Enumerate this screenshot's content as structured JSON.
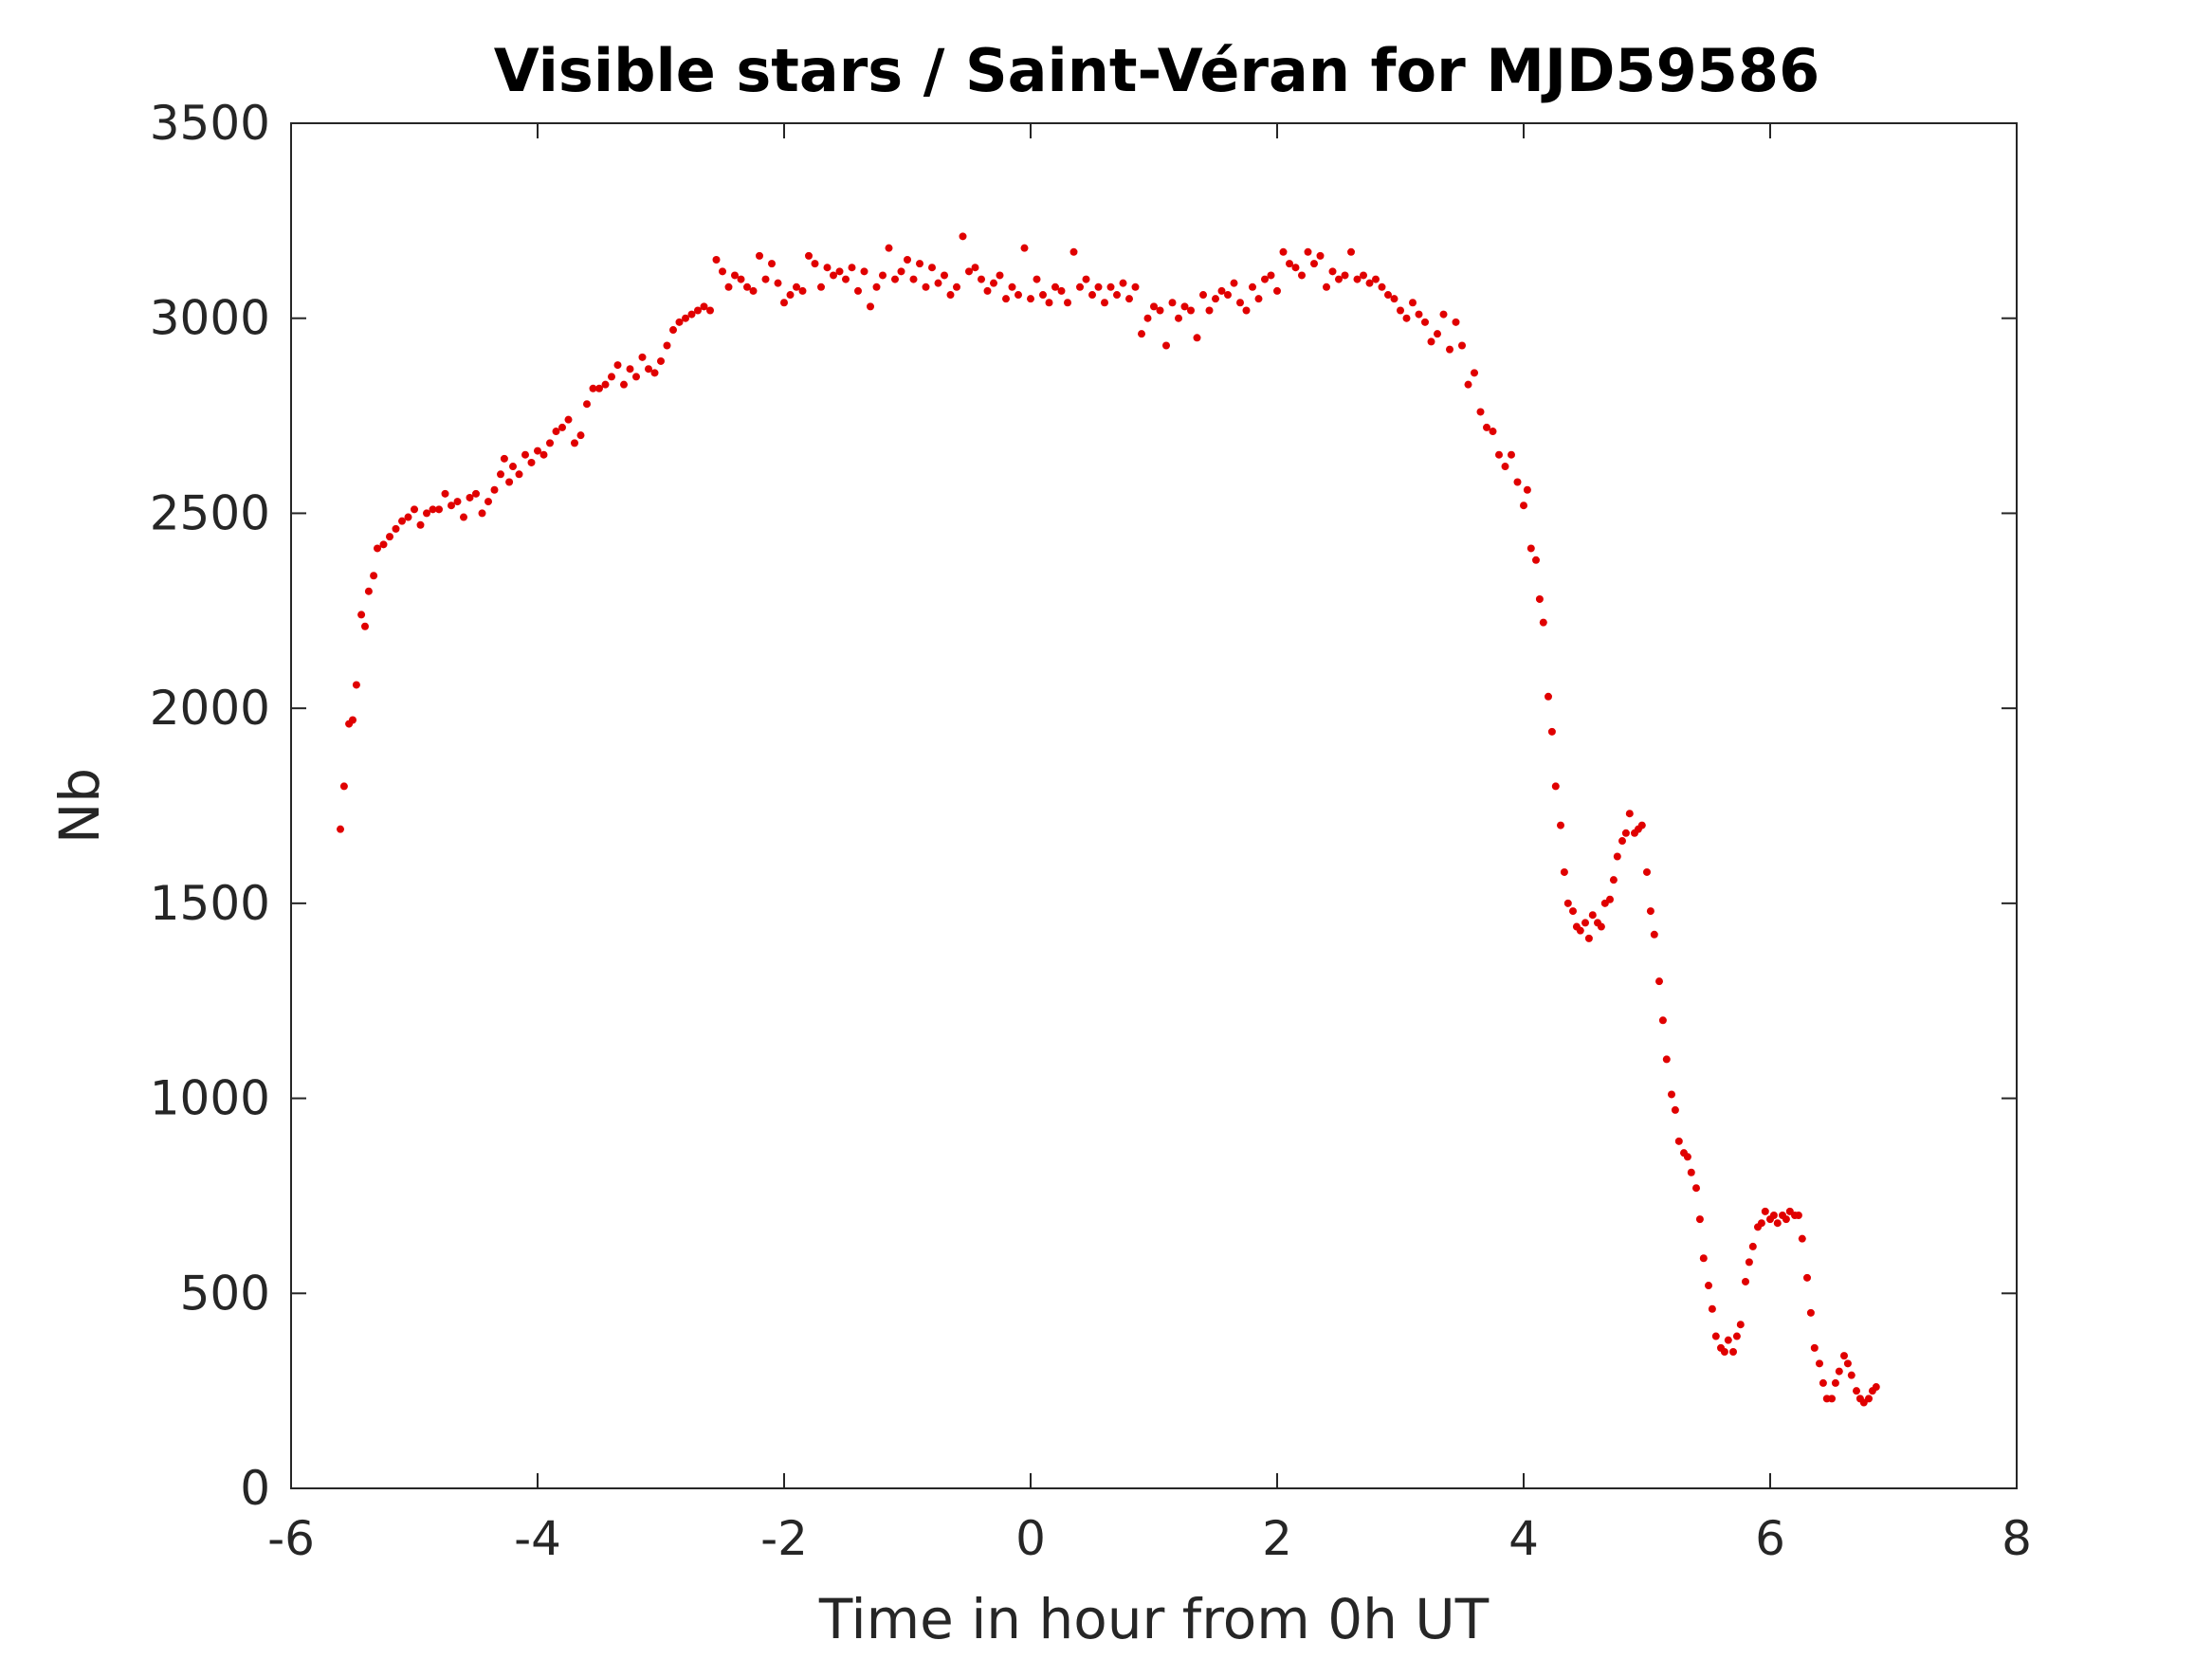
{
  "chart_data": {
    "type": "scatter",
    "title": "Visible stars / Saint-Véran for MJD59586",
    "xlabel": "Time in hour from 0h UT",
    "ylabel": "Nb",
    "xlim": [
      -6,
      8
    ],
    "ylim": [
      0,
      3500
    ],
    "xticks": [
      -6,
      -4,
      -2,
      0,
      2,
      4,
      6,
      8
    ],
    "yticks": [
      0,
      500,
      1000,
      1500,
      2000,
      2500,
      3000,
      3500
    ],
    "grid": false,
    "legend": "none",
    "marker_color": "#e00000",
    "series": [
      {
        "name": "",
        "points": [
          [
            -5.6,
            1690
          ],
          [
            -5.57,
            1800
          ],
          [
            -5.53,
            1960
          ],
          [
            -5.5,
            1970
          ],
          [
            -5.47,
            2060
          ],
          [
            -5.43,
            2240
          ],
          [
            -5.4,
            2210
          ],
          [
            -5.37,
            2300
          ],
          [
            -5.33,
            2340
          ],
          [
            -5.3,
            2410
          ],
          [
            -5.25,
            2420
          ],
          [
            -5.2,
            2440
          ],
          [
            -5.15,
            2460
          ],
          [
            -5.1,
            2480
          ],
          [
            -5.05,
            2490
          ],
          [
            -5.0,
            2510
          ],
          [
            -4.95,
            2470
          ],
          [
            -4.9,
            2500
          ],
          [
            -4.85,
            2510
          ],
          [
            -4.8,
            2510
          ],
          [
            -4.75,
            2550
          ],
          [
            -4.7,
            2520
          ],
          [
            -4.65,
            2530
          ],
          [
            -4.6,
            2490
          ],
          [
            -4.55,
            2540
          ],
          [
            -4.5,
            2550
          ],
          [
            -4.45,
            2500
          ],
          [
            -4.4,
            2530
          ],
          [
            -4.35,
            2560
          ],
          [
            -4.3,
            2600
          ],
          [
            -4.27,
            2640
          ],
          [
            -4.23,
            2580
          ],
          [
            -4.2,
            2620
          ],
          [
            -4.15,
            2600
          ],
          [
            -4.1,
            2650
          ],
          [
            -4.05,
            2630
          ],
          [
            -4.0,
            2660
          ],
          [
            -3.95,
            2650
          ],
          [
            -3.9,
            2680
          ],
          [
            -3.85,
            2710
          ],
          [
            -3.8,
            2720
          ],
          [
            -3.75,
            2740
          ],
          [
            -3.7,
            2680
          ],
          [
            -3.65,
            2700
          ],
          [
            -3.6,
            2780
          ],
          [
            -3.55,
            2820
          ],
          [
            -3.5,
            2820
          ],
          [
            -3.45,
            2830
          ],
          [
            -3.4,
            2850
          ],
          [
            -3.35,
            2880
          ],
          [
            -3.3,
            2830
          ],
          [
            -3.25,
            2870
          ],
          [
            -3.2,
            2850
          ],
          [
            -3.15,
            2900
          ],
          [
            -3.1,
            2870
          ],
          [
            -3.05,
            2860
          ],
          [
            -3.0,
            2890
          ],
          [
            -2.95,
            2930
          ],
          [
            -2.9,
            2970
          ],
          [
            -2.85,
            2990
          ],
          [
            -2.8,
            3000
          ],
          [
            -2.75,
            3010
          ],
          [
            -2.7,
            3020
          ],
          [
            -2.65,
            3030
          ],
          [
            -2.6,
            3020
          ],
          [
            -2.55,
            3150
          ],
          [
            -2.5,
            3120
          ],
          [
            -2.45,
            3080
          ],
          [
            -2.4,
            3110
          ],
          [
            -2.35,
            3100
          ],
          [
            -2.3,
            3080
          ],
          [
            -2.25,
            3070
          ],
          [
            -2.2,
            3160
          ],
          [
            -2.15,
            3100
          ],
          [
            -2.1,
            3140
          ],
          [
            -2.05,
            3090
          ],
          [
            -2.0,
            3040
          ],
          [
            -1.95,
            3060
          ],
          [
            -1.9,
            3080
          ],
          [
            -1.85,
            3070
          ],
          [
            -1.8,
            3160
          ],
          [
            -1.75,
            3140
          ],
          [
            -1.7,
            3080
          ],
          [
            -1.65,
            3130
          ],
          [
            -1.6,
            3110
          ],
          [
            -1.55,
            3120
          ],
          [
            -1.5,
            3100
          ],
          [
            -1.45,
            3130
          ],
          [
            -1.4,
            3070
          ],
          [
            -1.35,
            3120
          ],
          [
            -1.3,
            3030
          ],
          [
            -1.25,
            3080
          ],
          [
            -1.2,
            3110
          ],
          [
            -1.15,
            3180
          ],
          [
            -1.1,
            3100
          ],
          [
            -1.05,
            3120
          ],
          [
            -1.0,
            3150
          ],
          [
            -0.95,
            3100
          ],
          [
            -0.9,
            3140
          ],
          [
            -0.85,
            3080
          ],
          [
            -0.8,
            3130
          ],
          [
            -0.75,
            3090
          ],
          [
            -0.7,
            3110
          ],
          [
            -0.65,
            3060
          ],
          [
            -0.6,
            3080
          ],
          [
            -0.55,
            3210
          ],
          [
            -0.5,
            3120
          ],
          [
            -0.45,
            3130
          ],
          [
            -0.4,
            3100
          ],
          [
            -0.35,
            3070
          ],
          [
            -0.3,
            3090
          ],
          [
            -0.25,
            3110
          ],
          [
            -0.2,
            3050
          ],
          [
            -0.15,
            3080
          ],
          [
            -0.1,
            3060
          ],
          [
            -0.05,
            3180
          ],
          [
            0.0,
            3050
          ],
          [
            0.05,
            3100
          ],
          [
            0.1,
            3060
          ],
          [
            0.15,
            3040
          ],
          [
            0.2,
            3080
          ],
          [
            0.25,
            3070
          ],
          [
            0.3,
            3040
          ],
          [
            0.35,
            3170
          ],
          [
            0.4,
            3080
          ],
          [
            0.45,
            3100
          ],
          [
            0.5,
            3060
          ],
          [
            0.55,
            3080
          ],
          [
            0.6,
            3040
          ],
          [
            0.65,
            3080
          ],
          [
            0.7,
            3060
          ],
          [
            0.75,
            3090
          ],
          [
            0.8,
            3050
          ],
          [
            0.85,
            3080
          ],
          [
            0.9,
            2960
          ],
          [
            0.95,
            3000
          ],
          [
            1.0,
            3030
          ],
          [
            1.05,
            3020
          ],
          [
            1.1,
            2930
          ],
          [
            1.15,
            3040
          ],
          [
            1.2,
            3000
          ],
          [
            1.25,
            3030
          ],
          [
            1.3,
            3020
          ],
          [
            1.35,
            2950
          ],
          [
            1.4,
            3060
          ],
          [
            1.45,
            3020
          ],
          [
            1.5,
            3050
          ],
          [
            1.55,
            3070
          ],
          [
            1.6,
            3060
          ],
          [
            1.65,
            3090
          ],
          [
            1.7,
            3040
          ],
          [
            1.75,
            3020
          ],
          [
            1.8,
            3080
          ],
          [
            1.85,
            3050
          ],
          [
            1.9,
            3100
          ],
          [
            1.95,
            3110
          ],
          [
            2.0,
            3070
          ],
          [
            2.05,
            3170
          ],
          [
            2.1,
            3140
          ],
          [
            2.15,
            3130
          ],
          [
            2.2,
            3110
          ],
          [
            2.25,
            3170
          ],
          [
            2.3,
            3140
          ],
          [
            2.35,
            3160
          ],
          [
            2.4,
            3080
          ],
          [
            2.45,
            3120
          ],
          [
            2.5,
            3100
          ],
          [
            2.55,
            3110
          ],
          [
            2.6,
            3170
          ],
          [
            2.65,
            3100
          ],
          [
            2.7,
            3110
          ],
          [
            2.75,
            3090
          ],
          [
            2.8,
            3100
          ],
          [
            2.85,
            3080
          ],
          [
            2.9,
            3060
          ],
          [
            2.95,
            3050
          ],
          [
            3.0,
            3020
          ],
          [
            3.05,
            3000
          ],
          [
            3.1,
            3040
          ],
          [
            3.15,
            3010
          ],
          [
            3.2,
            2990
          ],
          [
            3.25,
            2940
          ],
          [
            3.3,
            2960
          ],
          [
            3.35,
            3010
          ],
          [
            3.4,
            2920
          ],
          [
            3.45,
            2990
          ],
          [
            3.5,
            2930
          ],
          [
            3.55,
            2830
          ],
          [
            3.6,
            2860
          ],
          [
            3.65,
            2760
          ],
          [
            3.7,
            2720
          ],
          [
            3.75,
            2710
          ],
          [
            3.8,
            2650
          ],
          [
            3.85,
            2620
          ],
          [
            3.9,
            2650
          ],
          [
            3.95,
            2580
          ],
          [
            4.0,
            2520
          ],
          [
            4.03,
            2560
          ],
          [
            4.06,
            2410
          ],
          [
            4.1,
            2380
          ],
          [
            4.13,
            2280
          ],
          [
            4.16,
            2220
          ],
          [
            4.2,
            2030
          ],
          [
            4.23,
            1940
          ],
          [
            4.26,
            1800
          ],
          [
            4.3,
            1700
          ],
          [
            4.33,
            1580
          ],
          [
            4.36,
            1500
          ],
          [
            4.4,
            1480
          ],
          [
            4.43,
            1440
          ],
          [
            4.46,
            1430
          ],
          [
            4.5,
            1450
          ],
          [
            4.53,
            1410
          ],
          [
            4.56,
            1470
          ],
          [
            4.6,
            1450
          ],
          [
            4.63,
            1440
          ],
          [
            4.66,
            1500
          ],
          [
            4.7,
            1510
          ],
          [
            4.73,
            1560
          ],
          [
            4.76,
            1620
          ],
          [
            4.8,
            1660
          ],
          [
            4.83,
            1680
          ],
          [
            4.86,
            1730
          ],
          [
            4.9,
            1680
          ],
          [
            4.93,
            1690
          ],
          [
            4.96,
            1700
          ],
          [
            5.0,
            1580
          ],
          [
            5.03,
            1480
          ],
          [
            5.06,
            1420
          ],
          [
            5.1,
            1300
          ],
          [
            5.13,
            1200
          ],
          [
            5.16,
            1100
          ],
          [
            5.2,
            1010
          ],
          [
            5.23,
            970
          ],
          [
            5.26,
            890
          ],
          [
            5.3,
            860
          ],
          [
            5.33,
            850
          ],
          [
            5.36,
            810
          ],
          [
            5.4,
            770
          ],
          [
            5.43,
            690
          ],
          [
            5.46,
            590
          ],
          [
            5.5,
            520
          ],
          [
            5.53,
            460
          ],
          [
            5.56,
            390
          ],
          [
            5.6,
            360
          ],
          [
            5.63,
            350
          ],
          [
            5.66,
            380
          ],
          [
            5.7,
            350
          ],
          [
            5.73,
            390
          ],
          [
            5.76,
            420
          ],
          [
            5.8,
            530
          ],
          [
            5.83,
            580
          ],
          [
            5.86,
            620
          ],
          [
            5.9,
            670
          ],
          [
            5.93,
            680
          ],
          [
            5.96,
            710
          ],
          [
            6.0,
            690
          ],
          [
            6.03,
            700
          ],
          [
            6.06,
            680
          ],
          [
            6.1,
            700
          ],
          [
            6.13,
            690
          ],
          [
            6.16,
            710
          ],
          [
            6.2,
            700
          ],
          [
            6.23,
            700
          ],
          [
            6.26,
            640
          ],
          [
            6.3,
            540
          ],
          [
            6.33,
            450
          ],
          [
            6.36,
            360
          ],
          [
            6.4,
            320
          ],
          [
            6.43,
            270
          ],
          [
            6.46,
            230
          ],
          [
            6.5,
            230
          ],
          [
            6.53,
            270
          ],
          [
            6.56,
            300
          ],
          [
            6.6,
            340
          ],
          [
            6.63,
            320
          ],
          [
            6.66,
            290
          ],
          [
            6.7,
            250
          ],
          [
            6.73,
            230
          ],
          [
            6.76,
            220
          ],
          [
            6.8,
            230
          ],
          [
            6.83,
            250
          ],
          [
            6.86,
            260
          ]
        ]
      }
    ]
  }
}
